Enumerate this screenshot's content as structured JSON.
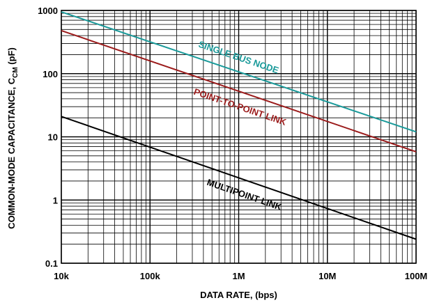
{
  "chart_data": {
    "type": "line",
    "xlabel": "DATA RATE, (bps)",
    "ylabel_main": "COMMON-MODE CAPACITANCE, C",
    "ylabel_sub": "CM",
    "ylabel_unit": " (pF)",
    "xscale": "log",
    "yscale": "log",
    "xlim": [
      10000,
      100000000
    ],
    "ylim": [
      0.1,
      1000
    ],
    "grid": true,
    "x_ticks": [
      {
        "value": 10000,
        "label": "10k"
      },
      {
        "value": 100000,
        "label": "100k"
      },
      {
        "value": 1000000,
        "label": "1M"
      },
      {
        "value": 10000000,
        "label": "10M"
      },
      {
        "value": 100000000,
        "label": "100M"
      }
    ],
    "y_ticks": [
      {
        "value": 1000,
        "label": "1000"
      },
      {
        "value": 100,
        "label": "100"
      },
      {
        "value": 10,
        "label": "10"
      },
      {
        "value": 1,
        "label": "1"
      },
      {
        "value": 0.1,
        "label": "0.1"
      }
    ],
    "series": [
      {
        "name": "SINGLE BUS NODE",
        "color": "#1a9a9a",
        "x": [
          10000,
          100000000
        ],
        "y": [
          950,
          12
        ]
      },
      {
        "name": "POINT-TO-POINT LINK",
        "color": "#9b1b1b",
        "x": [
          10000,
          100000000
        ],
        "y": [
          480,
          5.8
        ]
      },
      {
        "name": "MULTIPOINT LINK",
        "color": "#000000",
        "x": [
          10000,
          100000000
        ],
        "y": [
          21,
          0.24
        ]
      }
    ]
  }
}
